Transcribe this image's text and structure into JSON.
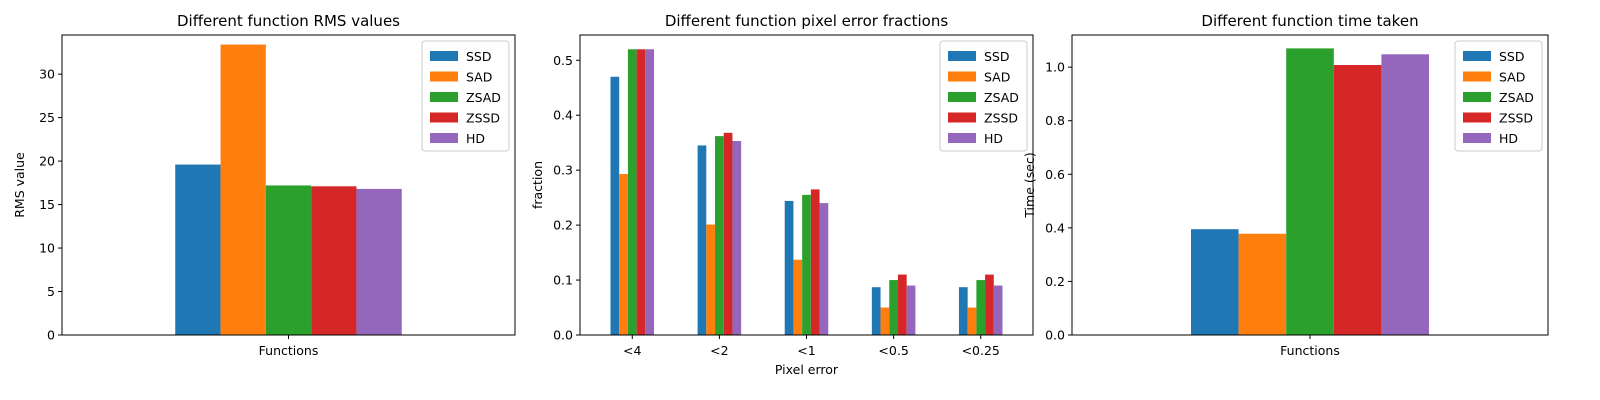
{
  "chart_data": [
    {
      "type": "bar",
      "title": "Different function RMS values",
      "xlabel": "",
      "ylabel": "RMS value",
      "categories": [
        "Functions"
      ],
      "ylim": [
        0,
        34.5
      ],
      "yticks": [
        0,
        5,
        10,
        15,
        20,
        25,
        30
      ],
      "series": [
        {
          "name": "SSD",
          "values": [
            19.6
          ]
        },
        {
          "name": "SAD",
          "values": [
            33.4
          ]
        },
        {
          "name": "ZSAD",
          "values": [
            17.2
          ]
        },
        {
          "name": "ZSSD",
          "values": [
            17.1
          ]
        },
        {
          "name": "HD",
          "values": [
            16.8
          ]
        }
      ],
      "legend": "top-right",
      "grid": false
    },
    {
      "type": "bar",
      "title": "Different function pixel error fractions",
      "xlabel": "Pixel error",
      "ylabel": "fraction",
      "categories": [
        "<4",
        "<2",
        "<1",
        "<0.5",
        "<0.25"
      ],
      "ylim": [
        0,
        0.546
      ],
      "yticks": [
        0.0,
        0.1,
        0.2,
        0.3,
        0.4,
        0.5
      ],
      "series": [
        {
          "name": "SSD",
          "values": [
            0.47,
            0.345,
            0.244,
            0.087,
            0.087
          ]
        },
        {
          "name": "SAD",
          "values": [
            0.293,
            0.201,
            0.137,
            0.05,
            0.05
          ]
        },
        {
          "name": "ZSAD",
          "values": [
            0.52,
            0.362,
            0.255,
            0.1,
            0.1
          ]
        },
        {
          "name": "ZSSD",
          "values": [
            0.52,
            0.368,
            0.265,
            0.11,
            0.11
          ]
        },
        {
          "name": "HD",
          "values": [
            0.52,
            0.353,
            0.24,
            0.09,
            0.09
          ]
        }
      ],
      "legend": "top-right",
      "grid": false
    },
    {
      "type": "bar",
      "title": "Different function time taken",
      "xlabel": "",
      "ylabel": "Time (sec)",
      "categories": [
        "Functions"
      ],
      "ylim": [
        0,
        1.12
      ],
      "yticks": [
        0.0,
        0.2,
        0.4,
        0.6,
        0.8,
        1.0
      ],
      "series": [
        {
          "name": "SSD",
          "values": [
            0.395
          ]
        },
        {
          "name": "SAD",
          "values": [
            0.378
          ]
        },
        {
          "name": "ZSAD",
          "values": [
            1.07
          ]
        },
        {
          "name": "ZSSD",
          "values": [
            1.008
          ]
        },
        {
          "name": "HD",
          "values": [
            1.048
          ]
        }
      ],
      "legend": "top-right",
      "grid": false
    }
  ],
  "colors": {
    "SSD": "#1f77b4",
    "SAD": "#ff7f0e",
    "ZSAD": "#2ca02c",
    "ZSSD": "#d62728",
    "HD": "#9467bd"
  }
}
